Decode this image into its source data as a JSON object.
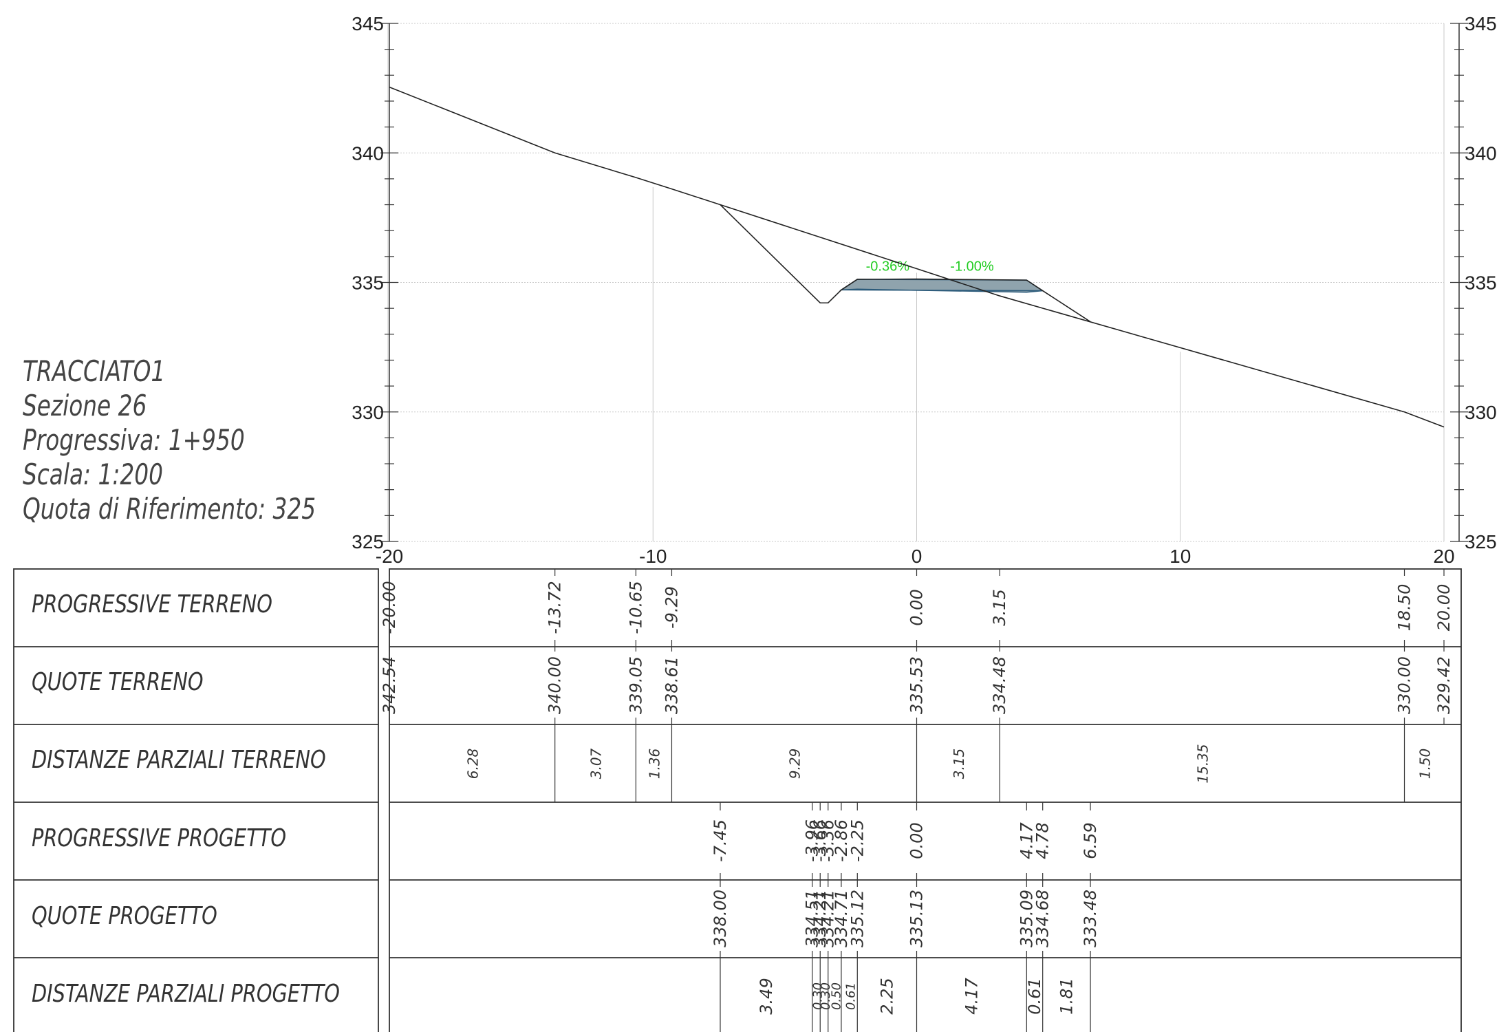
{
  "info": {
    "line1": "TRACCIATO1",
    "line2": "Sezione 26",
    "line3": "Progressiva: 1+950",
    "line4": "Scala: 1:200",
    "line5": "Quota di Riferimento: 325"
  },
  "rows": {
    "prog_terreno": "PROGRESSIVE TERRENO",
    "quote_terreno": "QUOTE TERRENO",
    "dist_terreno": "DISTANZE PARZIALI TERRENO",
    "prog_progetto": "PROGRESSIVE PROGETTO",
    "quote_progetto": "QUOTE PROGETTO",
    "dist_progetto": "DISTANZE PARZIALI PROGETTO"
  },
  "colors": {
    "terrain": "#222222",
    "grid": "#c8c8c8",
    "road_fill": "#8fa3ad",
    "road_edge": "#2b5a7a",
    "slope_text": "#22cc22",
    "table_line": "#333333",
    "table_text": "#333333"
  },
  "chart_data": {
    "type": "line",
    "xlim": [
      -20,
      20
    ],
    "ylim": [
      325,
      345
    ],
    "x_ticks": [
      -20,
      -10,
      0,
      10,
      20
    ],
    "y_ticks": [
      325,
      330,
      335,
      340,
      345
    ],
    "terrain": {
      "x": [
        -20.0,
        -13.72,
        -10.65,
        -9.29,
        0.0,
        3.15,
        18.5,
        20.0
      ],
      "y": [
        342.54,
        340.0,
        339.05,
        338.61,
        335.53,
        334.48,
        330.0,
        329.42
      ]
    },
    "project": {
      "x": [
        -7.45,
        -3.66,
        -3.36,
        -2.86,
        -2.25,
        0.0,
        4.17,
        4.78,
        6.59
      ],
      "y": [
        338.0,
        334.21,
        334.21,
        334.71,
        335.12,
        335.13,
        335.09,
        334.68,
        333.48
      ]
    },
    "slope_labels": [
      "-0.36%",
      "-1.00%"
    ],
    "table": {
      "prog_terreno": [
        "-20.00",
        "-13.72",
        "-10.65",
        "-9.29",
        "0.00",
        "3.15",
        "18.50",
        "20.00"
      ],
      "quote_terreno": [
        "342.54",
        "340.00",
        "339.05",
        "338.61",
        "335.53",
        "334.48",
        "330.00",
        "329.42"
      ],
      "dist_terreno": [
        "6.28",
        "3.07",
        "1.36",
        "9.29",
        "3.15",
        "15.35",
        "1.50"
      ],
      "prog_progetto_x": [
        -7.45,
        -3.96,
        -3.66,
        -3.36,
        -2.86,
        -2.25,
        0.0,
        4.17,
        4.78,
        6.59
      ],
      "prog_progetto": [
        "-7.45",
        "-3.96",
        "-3.66",
        "-3.36",
        "-2.86",
        "-2.25",
        "0.00",
        "4.17",
        "4.78",
        "6.59"
      ],
      "quote_progetto": [
        "338.00",
        "334.51",
        "334.21",
        "334.21",
        "334.71",
        "335.12",
        "335.13",
        "335.09",
        "334.68",
        "333.48"
      ],
      "dist_progetto": [
        "3.49",
        "0.30",
        "0.30",
        "0.50",
        "0.61",
        "2.25",
        "4.17",
        "0.61",
        "1.81"
      ]
    }
  }
}
